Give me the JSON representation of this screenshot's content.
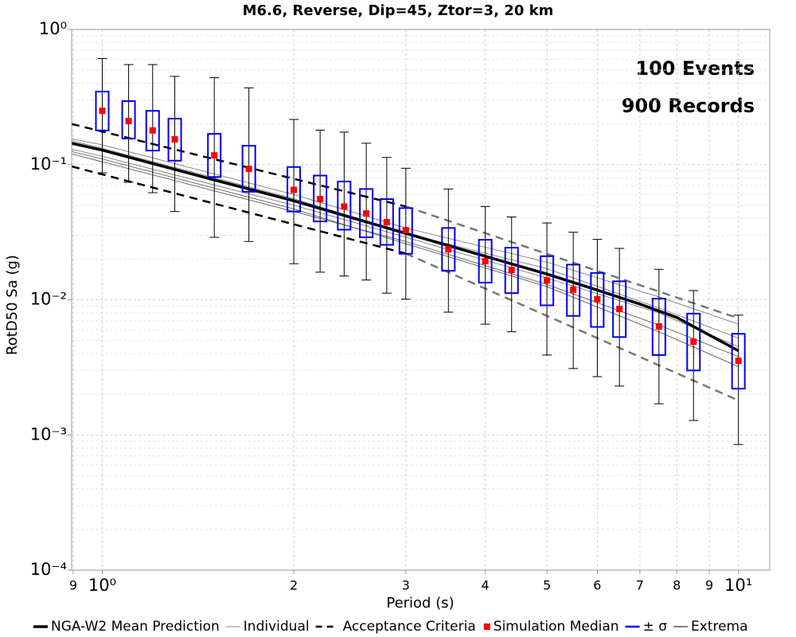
{
  "chart_data": {
    "type": "boxplot",
    "title": "M6.6, Reverse, Dip=45, Ztor=3, 20 km",
    "xlabel": "Period (s)",
    "ylabel": "RotD50 Sa (g)",
    "annotations": [
      "100 Events",
      "900 Records"
    ],
    "log_x": true,
    "log_y": true,
    "grid": true,
    "minor_grid": true,
    "legend": "bottom",
    "xlim": [
      0.895,
      11.2
    ],
    "ylim": [
      0.0001,
      1
    ],
    "xticks": [
      {
        "value": 0.9,
        "label": "9"
      },
      {
        "value": 1,
        "label": "10⁰"
      },
      2,
      3,
      4,
      5,
      6,
      7,
      8,
      9,
      {
        "value": 10,
        "label": "10¹"
      }
    ],
    "yticks": [
      {
        "value": 0.0001,
        "label": "10⁻⁴"
      },
      {
        "value": 0.001,
        "label": "10⁻³"
      },
      {
        "value": 0.01,
        "label": "10⁻²"
      },
      {
        "value": 0.1,
        "label": "10⁻¹"
      },
      {
        "value": 1,
        "label": "10⁰"
      }
    ],
    "x": [
      1.0,
      1.1,
      1.2,
      1.3,
      1.5,
      1.7,
      2,
      2.2,
      2.4,
      2.6,
      2.8,
      3,
      3.5,
      4,
      4.4,
      5,
      5.5,
      6,
      6.5,
      7.5,
      8.5,
      10
    ],
    "series": [
      {
        "name": "Individual",
        "kind": "line",
        "color": "#888888",
        "x": [
          0.895,
          1,
          2,
          3,
          5,
          7.5,
          10
        ],
        "values": [
          0.155,
          0.14,
          0.06,
          0.034,
          0.019,
          0.0105,
          0.0066
        ]
      },
      {
        "kind": "line",
        "color": "#888888",
        "x": [
          0.895,
          1,
          2,
          3,
          5,
          7.5,
          10
        ],
        "values": [
          0.15,
          0.132,
          0.056,
          0.031,
          0.017,
          0.0087,
          0.0052
        ]
      },
      {
        "kind": "line",
        "color": "#888888",
        "x": [
          0.895,
          1,
          2,
          3,
          5,
          7.5,
          10
        ],
        "values": [
          0.13,
          0.115,
          0.05,
          0.029,
          0.0145,
          0.008,
          0.0045
        ]
      },
      {
        "kind": "line",
        "color": "#666666",
        "x": [
          0.895,
          1,
          2,
          3,
          5,
          7.5,
          10
        ],
        "values": [
          0.125,
          0.11,
          0.047,
          0.026,
          0.0125,
          0.0058,
          0.0032
        ]
      },
      {
        "kind": "line",
        "color": "#666666",
        "x": [
          0.895,
          1,
          2,
          3,
          5,
          7.5,
          10
        ],
        "values": [
          0.12,
          0.105,
          0.045,
          0.027,
          0.013,
          0.0065,
          0.0038
        ]
      },
      {
        "name": "NGA-W2 Mean Prediction",
        "kind": "thick",
        "color": "#000000",
        "x": [
          0.895,
          1,
          1.5,
          2,
          3,
          4,
          5,
          6,
          7,
          8,
          10
        ],
        "values": [
          0.144,
          0.128,
          0.077,
          0.054,
          0.031,
          0.021,
          0.0155,
          0.0118,
          0.0093,
          0.0074,
          0.0042
        ]
      },
      {
        "name": "Acceptance Criteria",
        "kind": "dashed",
        "color": "#000000",
        "x": [
          0.895,
          3
        ],
        "values": [
          0.2,
          0.049
        ]
      },
      {
        "kind": "dashed",
        "color": "#000000",
        "x": [
          0.895,
          3
        ],
        "values": [
          0.097,
          0.022
        ]
      },
      {
        "kind": "dashed",
        "color": "#777777",
        "x": [
          3,
          10
        ],
        "values": [
          0.049,
          0.0073
        ]
      },
      {
        "kind": "dashed",
        "color": "#777777",
        "x": [
          3,
          10
        ],
        "values": [
          0.022,
          0.0018
        ]
      },
      {
        "name": "Extrema",
        "kind": "errorbar",
        "color": "#000000",
        "high": [
          0.61,
          0.55,
          0.55,
          0.45,
          0.44,
          0.37,
          0.216,
          0.18,
          0.174,
          0.144,
          0.113,
          0.094,
          0.066,
          0.049,
          0.041,
          0.037,
          0.0316,
          0.028,
          0.024,
          0.0168,
          0.0117,
          0.0077
        ],
        "low": [
          0.087,
          0.074,
          0.062,
          0.045,
          0.029,
          0.027,
          0.0185,
          0.016,
          0.015,
          0.014,
          0.0112,
          0.0101,
          0.0081,
          0.0066,
          0.0058,
          0.0039,
          0.0031,
          0.0027,
          0.0023,
          0.0017,
          0.00128,
          0.00085
        ]
      },
      {
        "name": "± σ",
        "kind": "box",
        "color": "#0000ee",
        "high": [
          0.347,
          0.295,
          0.25,
          0.219,
          0.169,
          0.138,
          0.096,
          0.083,
          0.075,
          0.066,
          0.0556,
          0.0477,
          0.034,
          0.0278,
          0.0243,
          0.021,
          0.0182,
          0.0158,
          0.0137,
          0.0102,
          0.0079,
          0.0056
        ],
        "low": [
          0.179,
          0.156,
          0.127,
          0.107,
          0.081,
          0.063,
          0.045,
          0.038,
          0.033,
          0.029,
          0.0255,
          0.0219,
          0.0164,
          0.0134,
          0.0112,
          0.0091,
          0.0076,
          0.0063,
          0.0053,
          0.0039,
          0.003,
          0.0022
        ]
      },
      {
        "name": "Simulation Median",
        "kind": "marker",
        "color": "#ff0000",
        "values": [
          0.25,
          0.21,
          0.179,
          0.154,
          0.117,
          0.093,
          0.065,
          0.0556,
          0.049,
          0.0435,
          0.0375,
          0.0327,
          0.0236,
          0.0193,
          0.0166,
          0.0139,
          0.0119,
          0.0101,
          0.00855,
          0.00635,
          0.0049,
          0.00354
        ]
      }
    ]
  }
}
